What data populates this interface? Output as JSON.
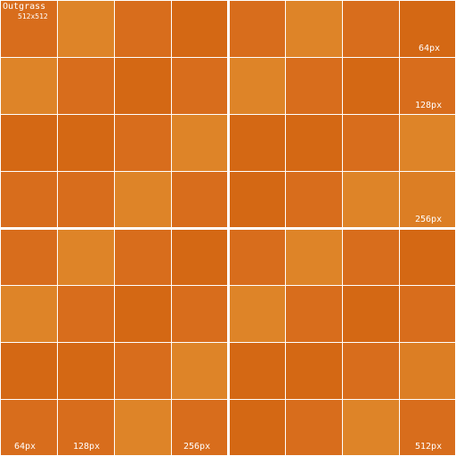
{
  "texture": {
    "title": "Outgrass",
    "size": "512x512",
    "colors": {
      "a": "#d86d1c",
      "b": "#de8428",
      "c": "#d46814",
      "d": "#dc7e24"
    },
    "grid": [
      [
        "a",
        "b",
        "a",
        "c",
        "a",
        "b",
        "a",
        "c"
      ],
      [
        "b",
        "a",
        "c",
        "a",
        "b",
        "a",
        "c",
        "a"
      ],
      [
        "c",
        "c",
        "a",
        "b",
        "c",
        "c",
        "a",
        "b"
      ],
      [
        "a",
        "a",
        "b",
        "a",
        "c",
        "a",
        "b",
        "d"
      ],
      [
        "a",
        "b",
        "a",
        "c",
        "a",
        "b",
        "a",
        "c"
      ],
      [
        "b",
        "a",
        "c",
        "a",
        "b",
        "a",
        "c",
        "a"
      ],
      [
        "c",
        "c",
        "a",
        "b",
        "c",
        "c",
        "a",
        "d"
      ],
      [
        "a",
        "a",
        "b",
        "a",
        "c",
        "a",
        "b",
        "a"
      ]
    ],
    "labels": {
      "right_64": "64px",
      "right_128": "128px",
      "right_256": "256px",
      "bottom_64": "64px",
      "bottom_128": "128px",
      "bottom_256": "256px",
      "bottom_512": "512px"
    }
  }
}
